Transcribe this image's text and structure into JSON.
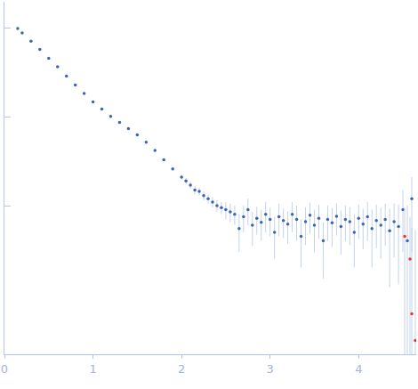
{
  "chart_data": {
    "type": "scatter",
    "log": "y",
    "grid": false,
    "tick_labels": "x",
    "marker": "circle",
    "xlim": [
      0,
      4.65
    ],
    "xticks": [
      0,
      1,
      2,
      3,
      4
    ],
    "ylim": [
      0.021,
      200
    ],
    "yticks": [
      1,
      10,
      100
    ],
    "series": [
      {
        "color": "#3a64b6",
        "x": [
          0.15,
          0.2,
          0.3,
          0.4,
          0.5,
          0.6,
          0.7,
          0.8,
          0.9,
          1.0,
          1.1,
          1.2,
          1.3,
          1.4,
          1.5,
          1.6,
          1.7,
          1.8,
          1.9,
          2.0,
          2.05,
          2.1,
          2.15,
          2.2,
          2.25,
          2.3,
          2.35,
          2.4,
          2.45,
          2.5,
          2.55,
          2.6,
          2.65,
          2.7,
          2.75,
          2.8,
          2.85,
          2.9,
          2.95,
          3.0,
          3.05,
          3.1,
          3.15,
          3.2,
          3.25,
          3.3,
          3.35,
          3.4,
          3.45,
          3.5,
          3.55,
          3.6,
          3.65,
          3.7,
          3.75,
          3.8,
          3.85,
          3.9,
          3.95,
          4.0,
          4.05,
          4.1,
          4.15,
          4.2,
          4.25,
          4.3,
          4.35,
          4.4,
          4.45,
          4.5,
          4.55,
          4.6
        ],
        "values": [
          100,
          89,
          72,
          58,
          46,
          37,
          29,
          23,
          18.5,
          14.8,
          12.3,
          10.2,
          8.7,
          7.4,
          6.3,
          5.2,
          4.2,
          3.3,
          2.6,
          2.1,
          1.9,
          1.7,
          1.5,
          1.45,
          1.3,
          1.2,
          1.1,
          1.0,
          0.95,
          0.9,
          0.85,
          0.8,
          0.55,
          0.75,
          0.9,
          0.6,
          0.72,
          0.65,
          0.8,
          0.7,
          0.5,
          0.75,
          0.68,
          0.62,
          0.8,
          0.7,
          0.45,
          0.66,
          0.78,
          0.6,
          0.72,
          0.4,
          0.7,
          0.64,
          0.76,
          0.58,
          0.7,
          0.66,
          0.5,
          0.72,
          0.62,
          0.75,
          0.55,
          0.68,
          0.6,
          0.7,
          0.52,
          0.66,
          0.58,
          0.9,
          0.4,
          1.2
        ],
        "error": [
          1,
          0.8,
          0.6,
          0.5,
          0.4,
          0.3,
          0.25,
          0.2,
          0.2,
          0.15,
          0.15,
          0.12,
          0.1,
          0.1,
          0.1,
          0.1,
          0.1,
          0.1,
          0.12,
          0.12,
          0.15,
          0.15,
          0.15,
          0.15,
          0.15,
          0.15,
          0.15,
          0.15,
          0.15,
          0.2,
          0.2,
          0.2,
          0.25,
          0.25,
          0.3,
          0.25,
          0.25,
          0.25,
          0.3,
          0.25,
          0.25,
          0.3,
          0.25,
          0.25,
          0.3,
          0.3,
          0.25,
          0.3,
          0.3,
          0.3,
          0.3,
          0.25,
          0.3,
          0.3,
          0.3,
          0.3,
          0.3,
          0.3,
          0.3,
          0.3,
          0.3,
          0.35,
          0.35,
          0.35,
          0.35,
          0.35,
          0.4,
          0.4,
          0.45,
          0.6,
          0.6,
          0.9
        ]
      },
      {
        "color": "#e8372c",
        "x": [
          4.52,
          4.58,
          4.6,
          4.64
        ],
        "values": [
          0.45,
          0.25,
          0.06,
          0.03
        ],
        "error": [
          0.5,
          0.5,
          0.5,
          0.5
        ]
      }
    ]
  }
}
